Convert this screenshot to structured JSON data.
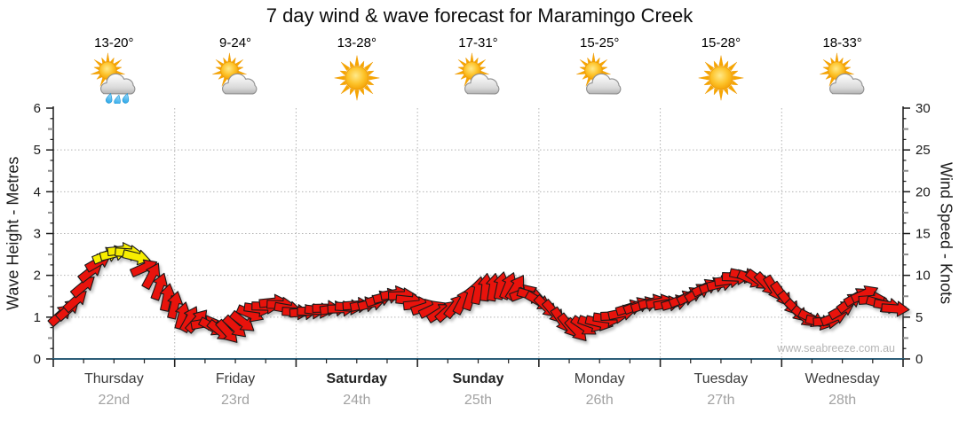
{
  "title": "7 day wind & wave forecast for Maramingo Creek",
  "watermark": "www.seabreeze.com.au",
  "colors": {
    "arrow_red": "#e8130c",
    "arrow_yellow": "#f7ee00",
    "arrow_outline": "#191919",
    "axis_bottom_line": "#2d5d78",
    "axis_side_line": "#1a1a1a",
    "gridline": "#b3b3b3",
    "connector_line": "#c6c6c6",
    "tick_label": "#1a1a1a",
    "half_tick": "#8c8c8c",
    "day_name": "#3c3c3c",
    "day_date": "#a2a2a2",
    "watermark": "#b5b5b5",
    "sun_core": "#f7a600",
    "sun_edge": "#ffe36e",
    "cloud_light": "#ffffff",
    "cloud_dark": "#b9b9b9",
    "rain_drop": "#4fc3f7"
  },
  "chart_data": {
    "type": "scatter",
    "subtype": "wind-direction-arrow-series",
    "title": "7 day wind & wave forecast for Maramingo Creek",
    "ylabel_left": "Wave Height - Metres",
    "ylabel_right": "Wind Speed - Knots",
    "y_left_range": [
      0,
      6
    ],
    "y_left_tick_step": 1,
    "y_right_range": [
      0,
      30
    ],
    "y_right_tick_step": 5,
    "grid": "dotted horizontal at each metre, dotted vertical at day boundaries",
    "legend": "none",
    "time_step_hours": 3,
    "dir_convention": "degrees clockwise from pointing-right (east); negative = tilted upward",
    "arrow_color_rule": "yellow when wind speed reaches about 12 knots, otherwise red",
    "x_tick_labels": [
      "Thursday 22nd",
      "Friday 23rd",
      "Saturday 24th",
      "Sunday 25th",
      "Monday 26th",
      "Tuesday 27th",
      "Wednesday 28th"
    ],
    "days": [
      {
        "name": "Thursday",
        "date": "22nd",
        "temp": "13-20°",
        "icon": "sun-rain",
        "weekend": false,
        "wind_knots": [
          {
            "kn": 5.3,
            "dir": -42,
            "c": "red"
          },
          {
            "kn": 7.0,
            "dir": -42,
            "c": "red"
          },
          {
            "kn": 10.5,
            "dir": -38,
            "c": "red"
          },
          {
            "kn": 12.4,
            "dir": -22,
            "c": "yellow"
          },
          {
            "kn": 13.0,
            "dir": -6,
            "c": "yellow"
          },
          {
            "kn": 12.2,
            "dir": 14,
            "c": "yellow"
          },
          {
            "kn": 10.0,
            "dir": -62,
            "c": "red"
          },
          {
            "kn": 7.4,
            "dir": -78,
            "c": "red"
          }
        ]
      },
      {
        "name": "Friday",
        "date": "23rd",
        "temp": "9-24°",
        "icon": "sun-cloud",
        "weekend": false,
        "wind_knots": [
          {
            "kn": 5.2,
            "dir": -75,
            "c": "red"
          },
          {
            "kn": 4.6,
            "dir": -48,
            "c": "red"
          },
          {
            "kn": 3.8,
            "dir": 28,
            "c": "red"
          },
          {
            "kn": 3.2,
            "dir": 48,
            "c": "red"
          },
          {
            "kn": 4.4,
            "dir": 38,
            "c": "red"
          },
          {
            "kn": 6.0,
            "dir": 8,
            "c": "red"
          },
          {
            "kn": 6.8,
            "dir": -6,
            "c": "red"
          },
          {
            "kn": 6.0,
            "dir": 10,
            "c": "red"
          }
        ]
      },
      {
        "name": "Saturday",
        "date": "24th",
        "temp": "13-28°",
        "icon": "sun",
        "weekend": true,
        "wind_knots": [
          {
            "kn": 5.6,
            "dir": -4,
            "c": "red"
          },
          {
            "kn": 5.8,
            "dir": 6,
            "c": "red"
          },
          {
            "kn": 6.0,
            "dir": -8,
            "c": "red"
          },
          {
            "kn": 6.2,
            "dir": 4,
            "c": "red"
          },
          {
            "kn": 6.5,
            "dir": -12,
            "c": "red"
          },
          {
            "kn": 7.2,
            "dir": -18,
            "c": "red"
          },
          {
            "kn": 7.8,
            "dir": -10,
            "c": "red"
          },
          {
            "kn": 7.0,
            "dir": 6,
            "c": "red"
          }
        ]
      },
      {
        "name": "Sunday",
        "date": "25th",
        "temp": "17-31°",
        "icon": "sun-cloud",
        "weekend": true,
        "wind_knots": [
          {
            "kn": 6.2,
            "dir": -18,
            "c": "red"
          },
          {
            "kn": 5.6,
            "dir": -32,
            "c": "red"
          },
          {
            "kn": 6.4,
            "dir": -52,
            "c": "red"
          },
          {
            "kn": 7.5,
            "dir": -72,
            "c": "red"
          },
          {
            "kn": 8.6,
            "dir": -84,
            "c": "red"
          },
          {
            "kn": 8.8,
            "dir": -78,
            "c": "red"
          },
          {
            "kn": 8.6,
            "dir": -58,
            "c": "red"
          },
          {
            "kn": 7.6,
            "dir": 16,
            "c": "red"
          }
        ]
      },
      {
        "name": "Monday",
        "date": "26th",
        "temp": "15-25°",
        "icon": "sun-cloud",
        "weekend": false,
        "wind_knots": [
          {
            "kn": 6.2,
            "dir": 44,
            "c": "red"
          },
          {
            "kn": 4.6,
            "dir": 56,
            "c": "red"
          },
          {
            "kn": 3.4,
            "dir": 48,
            "c": "red"
          },
          {
            "kn": 4.2,
            "dir": 20,
            "c": "red"
          },
          {
            "kn": 4.8,
            "dir": 8,
            "c": "red"
          },
          {
            "kn": 5.5,
            "dir": -12,
            "c": "red"
          },
          {
            "kn": 6.4,
            "dir": -22,
            "c": "red"
          },
          {
            "kn": 6.8,
            "dir": -14,
            "c": "red"
          }
        ]
      },
      {
        "name": "Tuesday",
        "date": "27th",
        "temp": "15-28°",
        "icon": "sun",
        "weekend": false,
        "wind_knots": [
          {
            "kn": 6.6,
            "dir": -10,
            "c": "red"
          },
          {
            "kn": 7.2,
            "dir": -22,
            "c": "red"
          },
          {
            "kn": 8.0,
            "dir": -32,
            "c": "red"
          },
          {
            "kn": 8.8,
            "dir": -20,
            "c": "red"
          },
          {
            "kn": 9.4,
            "dir": -8,
            "c": "red"
          },
          {
            "kn": 10.0,
            "dir": 12,
            "c": "red"
          },
          {
            "kn": 9.4,
            "dir": 36,
            "c": "red"
          },
          {
            "kn": 8.4,
            "dir": 58,
            "c": "red"
          }
        ]
      },
      {
        "name": "Wednesday",
        "date": "28th",
        "temp": "18-33°",
        "icon": "sun-cloud",
        "weekend": false,
        "wind_knots": [
          {
            "kn": 6.6,
            "dir": 52,
            "c": "red"
          },
          {
            "kn": 5.0,
            "dir": 40,
            "c": "red"
          },
          {
            "kn": 4.4,
            "dir": 14,
            "c": "red"
          },
          {
            "kn": 5.0,
            "dir": -22,
            "c": "red"
          },
          {
            "kn": 6.8,
            "dir": -36,
            "c": "red"
          },
          {
            "kn": 7.8,
            "dir": -24,
            "c": "red"
          },
          {
            "kn": 6.6,
            "dir": 16,
            "c": "red"
          },
          {
            "kn": 6.0,
            "dir": 4,
            "c": "red"
          }
        ]
      }
    ]
  }
}
